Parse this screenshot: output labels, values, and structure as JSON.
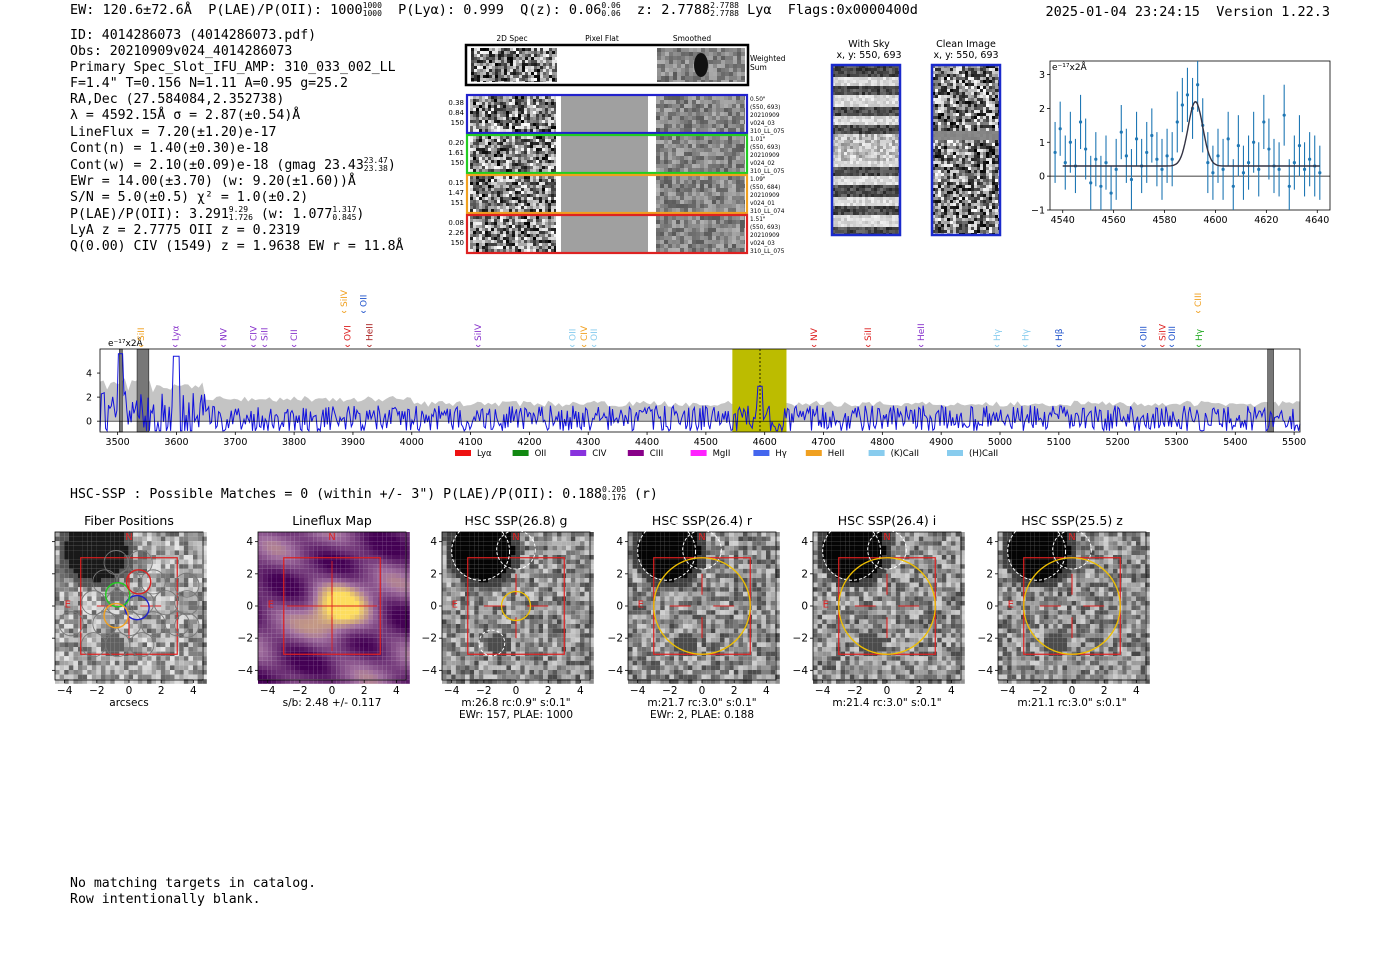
{
  "header": {
    "ew": "EW: 120.6±72.6Å",
    "plae_label": "P(LAE)/P(OII):",
    "plae_val": "1000",
    "plae_sup": "1000",
    "plae_sub": "1000",
    "plya": "P(Lyα): 0.999",
    "qz_label": "Q(z): 0.06",
    "qz_sup": "0.06",
    "qz_sub": "0.06",
    "z_label": "z: 2.7788",
    "z_sup": "2.7788",
    "z_sub": "2.7788",
    "line": "Lyα",
    "flags": "Flags:0x0000400d",
    "timestamp": "2025-01-04 23:24:15",
    "version": "Version 1.22.3"
  },
  "info": {
    "id": "ID: 4014286073 (4014286073.pdf)",
    "obs": "Obs: 20210909v024_4014286073",
    "primary": "Primary Spec_Slot_IFU_AMP: 310_033_002_LL",
    "params": "F=1.4\"  T=0.156  N=1.11  A=0.95  g=25.2",
    "radec": "RA,Dec (27.584084,2.352738)",
    "lambda": "λ = 4592.15Å  σ = 2.87(±0.54)Å",
    "lineflux": "LineFlux = 7.20(±1.20)e-17",
    "contn": "Cont(n) = 1.40(±0.30)e-18",
    "contw": "Cont(w) = 2.10(±0.09)e-18 (gmag 23.43",
    "gmag_sup": "23.47",
    "gmag_sub": "23.38",
    "ewr": "EWr = 14.00(±3.70) (w: 9.20(±1.60))Å",
    "sn": "S/N = 5.0(±0.5)  χ² = 1.0(±0.2)",
    "plae": "P(LAE)/P(OII): 3.291",
    "plae_sup": "9.29",
    "plae_sub": "1.726",
    "plae_w": "(w: 1.077",
    "plae_w_sup": "1.317",
    "plae_w_sub": "0.845",
    "lya": "LyA z = 2.7775  OII z = 0.2319",
    "civ": "Q(0.00) CIV (1549) z = 1.9638  EW r = 11.8Å"
  },
  "cutouts": {
    "col_headers": [
      "2D Spec",
      "Pixel Flat",
      "Smoothed"
    ],
    "weighted": "Weighted Sum",
    "rows": [
      {
        "color": "#2222cc",
        "left": [
          "0.38",
          "0.84",
          "150"
        ],
        "right": [
          "0.50\"",
          "(550, 693)",
          "20210909",
          "v024_03",
          "310_LL_075"
        ]
      },
      {
        "color": "#22cc22",
        "left": [
          "0.20",
          "1.61",
          "150"
        ],
        "right": [
          "1.01\"",
          "(550, 693)",
          "20210909",
          "v024_02",
          "310_LL_075"
        ]
      },
      {
        "color": "#f0a020",
        "left": [
          "0.15",
          "1.47",
          "151"
        ],
        "right": [
          "1.09\"",
          "(550, 684)",
          "20210909",
          "v024_01",
          "310_LL_074"
        ]
      },
      {
        "color": "#dd2222",
        "left": [
          "0.08",
          "2.26",
          "150"
        ],
        "right": [
          "1.51\"",
          "(550, 693)",
          "20210909",
          "v024_03",
          "310_LL_075"
        ]
      }
    ]
  },
  "sky": {
    "title": "With Sky",
    "coords": "x, y: 550, 693"
  },
  "clean": {
    "title": "Clean Image",
    "coords": "x, y: 550, 693"
  },
  "chart_data": [
    {
      "type": "scatter",
      "title": "zoom spectrum",
      "unit_label": "e⁻¹⁷x2Å",
      "xlim": [
        4535,
        4645
      ],
      "ylim": [
        -1,
        3.4
      ],
      "xticks": [
        4540,
        4560,
        4580,
        4600,
        4620,
        4640
      ],
      "yticks": [
        -1,
        0,
        1,
        2,
        3
      ],
      "x": [
        4537,
        4539,
        4541,
        4543,
        4545,
        4547,
        4549,
        4551,
        4553,
        4555,
        4557,
        4559,
        4561,
        4563,
        4565,
        4567,
        4569,
        4571,
        4573,
        4575,
        4577,
        4579,
        4581,
        4583,
        4585,
        4587,
        4589,
        4591,
        4593,
        4595,
        4597,
        4599,
        4601,
        4603,
        4605,
        4607,
        4609,
        4611,
        4613,
        4615,
        4617,
        4619,
        4621,
        4623,
        4625,
        4627,
        4629,
        4631,
        4633,
        4635,
        4637,
        4639,
        4641
      ],
      "y": [
        0.7,
        1.4,
        0.4,
        1.0,
        0.3,
        1.6,
        0.8,
        -0.2,
        0.5,
        -0.3,
        0.4,
        -0.5,
        0.2,
        1.3,
        0.6,
        -0.1,
        1.1,
        0.3,
        0.7,
        1.2,
        0.5,
        0.2,
        0.6,
        0.5,
        1.6,
        2.1,
        2.4,
        2.0,
        2.7,
        1.5,
        0.4,
        0.1,
        0.6,
        0.2,
        1.1,
        -0.3,
        0.9,
        0.1,
        0.4,
        1.0,
        0.2,
        1.6,
        0.8,
        0.3,
        0.2,
        1.8,
        -0.3,
        0.4,
        0.9,
        0.2,
        0.5,
        0.3,
        0.1
      ],
      "err": [
        0.9,
        0.8,
        0.8,
        0.9,
        0.8,
        0.8,
        0.9,
        0.8,
        0.8,
        0.9,
        0.8,
        0.8,
        0.9,
        0.8,
        0.8,
        0.9,
        0.8,
        0.8,
        0.9,
        0.8,
        0.8,
        0.9,
        0.8,
        0.8,
        0.9,
        0.8,
        0.8,
        0.9,
        0.8,
        0.8,
        0.9,
        0.8,
        0.8,
        0.9,
        0.8,
        0.8,
        0.9,
        0.8,
        0.8,
        0.9,
        0.8,
        0.8,
        0.9,
        0.8,
        0.8,
        0.9,
        0.8,
        0.8,
        0.9,
        0.8,
        0.8,
        0.9,
        0.8
      ],
      "fit": {
        "continuum": 0.3,
        "amp": 1.9,
        "center": 4592.15,
        "sigma": 2.87
      }
    },
    {
      "type": "line",
      "title": "full spectrum",
      "unit_label": "e⁻¹⁷x2Å",
      "xlim": [
        3470,
        5510
      ],
      "ylim": [
        -0.9,
        6.0
      ],
      "xticks": [
        3500,
        3600,
        3700,
        3800,
        3900,
        4000,
        4100,
        4200,
        4300,
        4400,
        4500,
        4600,
        4700,
        4800,
        4900,
        5000,
        5100,
        5200,
        5300,
        5400,
        5500
      ],
      "yticks": [
        0,
        2,
        4
      ],
      "highlight": [
        4545,
        4637
      ],
      "highlight_center": 4592,
      "grey_bands": [
        [
          3503,
          3508
        ],
        [
          3533,
          3553
        ],
        [
          5455,
          5465
        ]
      ],
      "lines": [
        {
          "name": "SiII",
          "x": 3540,
          "color": "#f0a020",
          "row": 1
        },
        {
          "name": "Lyα",
          "x": 3598,
          "color": "#8833cc",
          "row": 1
        },
        {
          "name": "NV",
          "x": 3680,
          "color": "#8833cc",
          "row": 1
        },
        {
          "name": "CIV",
          "x": 3731,
          "color": "#8833cc",
          "row": 1
        },
        {
          "name": "SiII",
          "x": 3750,
          "color": "#8833cc",
          "row": 1
        },
        {
          "name": "CII",
          "x": 3800,
          "color": "#8833cc",
          "row": 1
        },
        {
          "name": "SiIV",
          "x": 3885,
          "color": "#f0a020",
          "row": 0
        },
        {
          "name": "OVI",
          "x": 3891,
          "color": "#dd2222",
          "row": 1
        },
        {
          "name": "OII",
          "x": 3918,
          "color": "#2255cc",
          "row": 0
        },
        {
          "name": "HeII",
          "x": 3928,
          "color": "#aa2222",
          "row": 1
        },
        {
          "name": "SiIV",
          "x": 4113,
          "color": "#8833cc",
          "row": 1
        },
        {
          "name": "OII",
          "x": 4273,
          "color": "#88ccee",
          "row": 1
        },
        {
          "name": "CIV",
          "x": 4293,
          "color": "#f0a020",
          "row": 1
        },
        {
          "name": "OII",
          "x": 4310,
          "color": "#88ccee",
          "row": 1
        },
        {
          "name": "NV",
          "x": 4684,
          "color": "#dd2222",
          "row": 1
        },
        {
          "name": "SiII",
          "x": 4776,
          "color": "#dd2222",
          "row": 1
        },
        {
          "name": "HeII",
          "x": 4866,
          "color": "#8833cc",
          "row": 1
        },
        {
          "name": "Hγ",
          "x": 4995,
          "color": "#88ccee",
          "row": 1
        },
        {
          "name": "Hγ",
          "x": 5043,
          "color": "#88ccee",
          "row": 1
        },
        {
          "name": "Hβ",
          "x": 5100,
          "color": "#2255cc",
          "row": 1
        },
        {
          "name": "OIII",
          "x": 5244,
          "color": "#2255cc",
          "row": 1
        },
        {
          "name": "SiIV",
          "x": 5276,
          "color": "#dd2222",
          "row": 1
        },
        {
          "name": "OIII",
          "x": 5292,
          "color": "#2255cc",
          "row": 1
        },
        {
          "name": "CIII",
          "x": 5337,
          "color": "#f0a020",
          "row": 0
        },
        {
          "name": "Hγ",
          "x": 5338,
          "color": "#22aa22",
          "row": 1
        }
      ],
      "legend": [
        {
          "name": "Lyα",
          "color": "#ee1111"
        },
        {
          "name": "OII",
          "color": "#118811"
        },
        {
          "name": "CIV",
          "color": "#8833dd"
        },
        {
          "name": "CIII",
          "color": "#880088"
        },
        {
          "name": "MgII",
          "color": "#ff22ff"
        },
        {
          "name": "Hγ",
          "color": "#4466ee"
        },
        {
          "name": "HeII",
          "color": "#f0a020"
        },
        {
          "name": "(K)CaII",
          "color": "#88ccee"
        },
        {
          "name": "(H)CaII",
          "color": "#88ccee"
        }
      ]
    }
  ],
  "hsc": {
    "header": "HSC-SSP : Possible Matches = 0 (within +/- 3\")  P(LAE)/P(OII): 0.188",
    "header_sup": "0.205",
    "header_sub": "0.176",
    "header_band": "(r)",
    "panels": [
      {
        "title": "Fiber Positions",
        "cap1": "arcsecs",
        "cap2": ""
      },
      {
        "title": "Lineflux Map",
        "cap1": "s/b: 2.48 +/- 0.117",
        "cap2": ""
      },
      {
        "title": "HSC SSP(26.8) g",
        "cap1": "m:26.8 rc:0.9\"  s:0.1\"",
        "cap2": "EWr: 157, PLAE: 1000"
      },
      {
        "title": "HSC SSP(26.4) r",
        "cap1": "m:21.7 rc:3.0\"  s:0.1\"",
        "cap2": "EWr: 2, PLAE: 0.188"
      },
      {
        "title": "HSC SSP(26.4) i",
        "cap1": "m:21.4 rc:3.0\"  s:0.1\"",
        "cap2": ""
      },
      {
        "title": "HSC SSP(25.5) z",
        "cap1": "m:21.1 rc:3.0\"  s:0.1\"",
        "cap2": ""
      }
    ],
    "ticks": [
      "−4",
      "−2",
      "0",
      "2",
      "4"
    ],
    "compass_n": "N",
    "compass_e": "E"
  },
  "footer": {
    "line1": "No matching targets in catalog.",
    "line2": "Row intentionally blank."
  }
}
